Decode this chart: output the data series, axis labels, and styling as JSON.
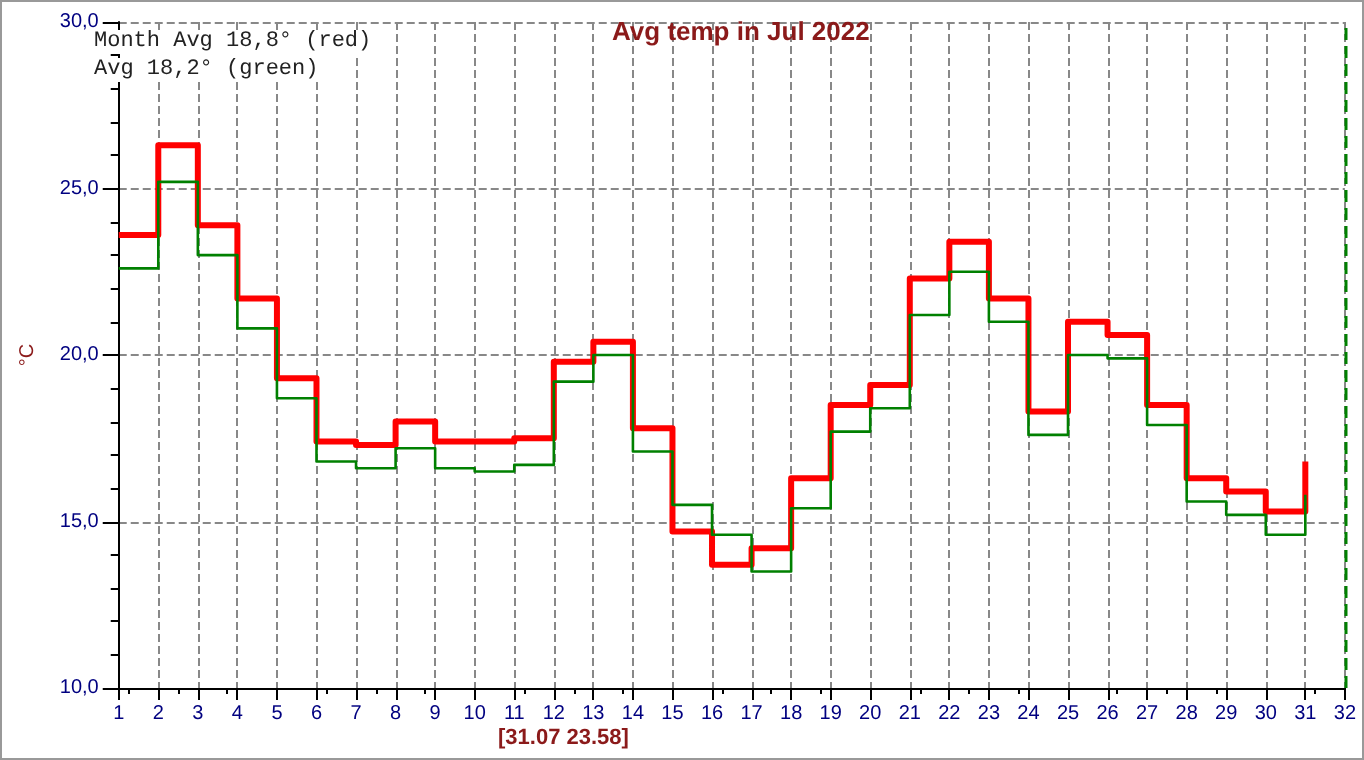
{
  "chart_data": {
    "type": "step",
    "title": "Avg temp in Jul 2022",
    "ylabel": "°C",
    "annotations": [
      "Month Avg 18,8° (red)",
      "Avg 18,2° (green)",
      "[31.07 23.58]"
    ],
    "x": [
      1,
      2,
      3,
      4,
      5,
      6,
      7,
      8,
      9,
      10,
      11,
      12,
      13,
      14,
      15,
      16,
      17,
      18,
      19,
      20,
      21,
      22,
      23,
      24,
      25,
      26,
      27,
      28,
      29,
      30,
      31
    ],
    "series": [
      {
        "color": "#ff0000",
        "values": [
          23.6,
          26.3,
          23.9,
          21.7,
          19.3,
          17.4,
          17.3,
          18.0,
          17.4,
          17.4,
          17.5,
          19.8,
          20.4,
          17.8,
          14.7,
          13.7,
          14.2,
          16.3,
          18.5,
          19.1,
          22.3,
          23.4,
          21.7,
          18.3,
          21.0,
          20.6,
          18.5,
          16.3,
          15.9,
          15.3,
          16.8
        ]
      },
      {
        "color": "#008000",
        "values": [
          22.6,
          25.2,
          23.0,
          20.8,
          18.7,
          16.8,
          16.6,
          17.2,
          16.6,
          16.5,
          16.7,
          19.2,
          20.0,
          17.1,
          15.5,
          14.6,
          13.5,
          15.4,
          17.7,
          18.4,
          21.2,
          22.5,
          21.0,
          17.6,
          20.0,
          19.9,
          17.9,
          15.6,
          15.2,
          14.6,
          15.8
        ]
      }
    ],
    "xlim": [
      1,
      32
    ],
    "xticks": [
      1,
      2,
      3,
      4,
      5,
      6,
      7,
      8,
      9,
      10,
      11,
      12,
      13,
      14,
      15,
      16,
      17,
      18,
      19,
      20,
      21,
      22,
      23,
      24,
      25,
      26,
      27,
      28,
      29,
      30,
      31,
      32
    ],
    "ylim": [
      10,
      30
    ],
    "yticks": [
      {
        "value": 10,
        "label": "10,0"
      },
      {
        "value": 15,
        "label": "15,0"
      },
      {
        "value": 20,
        "label": "20,0"
      },
      {
        "value": 25,
        "label": "25,0"
      },
      {
        "value": 30,
        "label": "30,0"
      }
    ],
    "ref_lines": [
      {
        "axis": "x",
        "value": 32,
        "color": "#008000",
        "line_style": "dashed"
      }
    ],
    "grid": true,
    "marker": "none",
    "line_style": "solid"
  }
}
